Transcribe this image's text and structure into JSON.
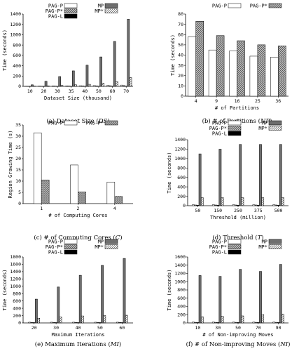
{
  "colors": {
    "pag_p": "#ffffff",
    "pag_p_star": "#c8c8c8",
    "pag_l": "#000000",
    "mp": "#6e6e6e",
    "mp_star": "#e6e6e6"
  },
  "chart_data": [
    {
      "id": "a",
      "type": "bar",
      "caption": "(a) Dataset Size (",
      "caption_sym": "DS",
      "caption_end": ")",
      "xlabel": "Dataset Size (thousand)",
      "ylabel": "Time (seconds)",
      "ylim": [
        0,
        1400
      ],
      "yticks": [
        0,
        200,
        400,
        600,
        800,
        1000,
        1200,
        1400
      ],
      "categories": [
        "10",
        "20",
        "30",
        "35",
        "40",
        "50",
        "60",
        "70"
      ],
      "legend": [
        {
          "key": "pag_p",
          "label": "PAG-P",
          "row": 0,
          "col": 0
        },
        {
          "key": "mp",
          "label": "MP",
          "row": 0,
          "col": 1
        },
        {
          "key": "pag_p_star",
          "label": "PAG-P*",
          "row": 1,
          "col": 0
        },
        {
          "key": "mp_star",
          "label": "MP*",
          "row": 1,
          "col": 1
        },
        {
          "key": "pag_l",
          "label": "PAG-L",
          "row": 2,
          "col": 0
        }
      ],
      "series": [
        {
          "key": "pag_p",
          "values": [
            3,
            5,
            8,
            10,
            12,
            15,
            20,
            25
          ]
        },
        {
          "key": "pag_p_star",
          "values": [
            2,
            3,
            5,
            6,
            8,
            10,
            12,
            15
          ]
        },
        {
          "key": "pag_l",
          "values": [
            1,
            1,
            2,
            2,
            3,
            3,
            4,
            4
          ]
        },
        {
          "key": "mp",
          "values": [
            30,
            100,
            190,
            300,
            410,
            570,
            870,
            1300
          ]
        },
        {
          "key": "mp_star",
          "values": [
            5,
            10,
            20,
            30,
            40,
            60,
            90,
            170
          ]
        }
      ]
    },
    {
      "id": "b",
      "type": "bar",
      "caption": "(b) # of Partitions (",
      "caption_sym": "NP",
      "caption_end": ")",
      "xlabel": "# of Partitions",
      "ylabel": "Time (seconds)",
      "ylim": [
        0,
        80
      ],
      "yticks": [
        0,
        10,
        20,
        30,
        40,
        50,
        60,
        70,
        80
      ],
      "categories": [
        "4",
        "9",
        "16",
        "25",
        "36"
      ],
      "legend": [
        {
          "key": "pag_p",
          "label": "PAG-P",
          "row": 0,
          "col": 0
        },
        {
          "key": "pag_p_star",
          "label": "PAG-P*",
          "row": 0,
          "col": 1
        }
      ],
      "series": [
        {
          "key": "pag_p",
          "values": [
            58,
            45,
            44,
            39,
            38
          ]
        },
        {
          "key": "pag_p_star",
          "values": [
            73,
            59,
            54,
            50,
            49
          ]
        }
      ]
    },
    {
      "id": "c",
      "type": "bar",
      "caption": "(c) # of Computing Cores (",
      "caption_sym": "C",
      "caption_end": ")",
      "xlabel": "# of Computing Cores",
      "ylabel": "Region Growing Time (s)",
      "ylim": [
        0,
        35
      ],
      "yticks": [
        0,
        5,
        10,
        15,
        20,
        25,
        30,
        35
      ],
      "categories": [
        "1",
        "2",
        "4"
      ],
      "legend": [
        {
          "key": "pag_p",
          "label": "PAG-P",
          "row": 0,
          "col": 0
        },
        {
          "key": "pag_p_star",
          "label": "PAG-P*",
          "row": 0,
          "col": 1
        }
      ],
      "series": [
        {
          "key": "pag_p",
          "values": [
            31.5,
            17.2,
            9.6
          ]
        },
        {
          "key": "pag_p_star",
          "values": [
            10.5,
            5.2,
            3.2
          ]
        }
      ]
    },
    {
      "id": "d",
      "type": "bar",
      "caption": "(d) Threshold (",
      "caption_sym": "T",
      "caption_end": ")",
      "xlabel": "Threshold (million)",
      "ylabel": "Time (seconds)",
      "ylim": [
        0,
        1400
      ],
      "yticks": [
        0,
        200,
        400,
        600,
        800,
        1000,
        1200,
        1400
      ],
      "categories": [
        "50",
        "150",
        "250",
        "375",
        "500"
      ],
      "legend": [
        {
          "key": "pag_p",
          "label": "PAG-P",
          "row": 0,
          "col": 0
        },
        {
          "key": "mp",
          "label": "MP",
          "row": 0,
          "col": 1
        },
        {
          "key": "pag_p_star",
          "label": "PAG-P*",
          "row": 1,
          "col": 0
        },
        {
          "key": "mp_star",
          "label": "MP*",
          "row": 1,
          "col": 1
        },
        {
          "key": "pag_l",
          "label": "PAG-L",
          "row": 2,
          "col": 0
        }
      ],
      "series": [
        {
          "key": "pag_p",
          "values": [
            20,
            20,
            20,
            20,
            20
          ]
        },
        {
          "key": "pag_p_star",
          "values": [
            15,
            15,
            15,
            15,
            15
          ]
        },
        {
          "key": "pag_l",
          "values": [
            10,
            10,
            10,
            10,
            10
          ]
        },
        {
          "key": "mp",
          "values": [
            1100,
            1200,
            1300,
            1300,
            1300
          ]
        },
        {
          "key": "mp_star",
          "values": [
            170,
            170,
            170,
            170,
            170
          ]
        }
      ]
    },
    {
      "id": "e",
      "type": "bar",
      "caption": "(e) Maximum Iterations (",
      "caption_sym": "MI",
      "caption_end": ")",
      "xlabel": "Maximum Iterations",
      "ylabel": "Time (seconds)",
      "ylim": [
        0,
        1800
      ],
      "yticks": [
        0,
        200,
        400,
        600,
        800,
        1000,
        1200,
        1400,
        1600,
        1800
      ],
      "categories": [
        "20",
        "30",
        "40",
        "50",
        "60"
      ],
      "legend": [
        {
          "key": "pag_p",
          "label": "PAG-P",
          "row": 0,
          "col": 0
        },
        {
          "key": "mp",
          "label": "MP",
          "row": 0,
          "col": 1
        },
        {
          "key": "pag_p_star",
          "label": "PAG-P*",
          "row": 1,
          "col": 0
        },
        {
          "key": "mp_star",
          "label": "MP*",
          "row": 1,
          "col": 1
        },
        {
          "key": "pag_l",
          "label": "PAG-L",
          "row": 2,
          "col": 0
        }
      ],
      "series": [
        {
          "key": "pag_p",
          "values": [
            20,
            20,
            20,
            20,
            20
          ]
        },
        {
          "key": "pag_p_star",
          "values": [
            15,
            15,
            15,
            15,
            15
          ]
        },
        {
          "key": "pag_l",
          "values": [
            10,
            10,
            10,
            10,
            10
          ]
        },
        {
          "key": "mp",
          "values": [
            650,
            980,
            1300,
            1570,
            1760
          ]
        },
        {
          "key": "mp_star",
          "values": [
            130,
            160,
            190,
            200,
            210
          ]
        }
      ]
    },
    {
      "id": "f",
      "type": "bar",
      "caption": "(f) # of Non-improving Moves (",
      "caption_sym": "NI",
      "caption_end": ")",
      "xlabel": "# of Non-improving Moves",
      "ylabel": "Time (seconds)",
      "ylim": [
        0,
        1600
      ],
      "yticks": [
        0,
        200,
        400,
        600,
        800,
        1000,
        1200,
        1400,
        1600
      ],
      "categories": [
        "10",
        "30",
        "50",
        "70",
        "90"
      ],
      "legend": [
        {
          "key": "pag_p",
          "label": "PAG-P",
          "row": 0,
          "col": 0
        },
        {
          "key": "mp",
          "label": "MP",
          "row": 0,
          "col": 1
        },
        {
          "key": "pag_p_star",
          "label": "PAG-P*",
          "row": 1,
          "col": 0
        },
        {
          "key": "mp_star",
          "label": "MP*",
          "row": 1,
          "col": 1
        },
        {
          "key": "pag_l",
          "label": "PAG-L",
          "row": 2,
          "col": 0
        }
      ],
      "series": [
        {
          "key": "pag_p",
          "values": [
            20,
            20,
            20,
            20,
            20
          ]
        },
        {
          "key": "pag_p_star",
          "values": [
            15,
            15,
            15,
            15,
            15
          ]
        },
        {
          "key": "pag_l",
          "values": [
            10,
            10,
            10,
            10,
            10
          ]
        },
        {
          "key": "mp",
          "values": [
            1150,
            1130,
            1300,
            1250,
            1420
          ]
        },
        {
          "key": "mp_star",
          "values": [
            150,
            160,
            170,
            200,
            210
          ]
        }
      ]
    }
  ]
}
